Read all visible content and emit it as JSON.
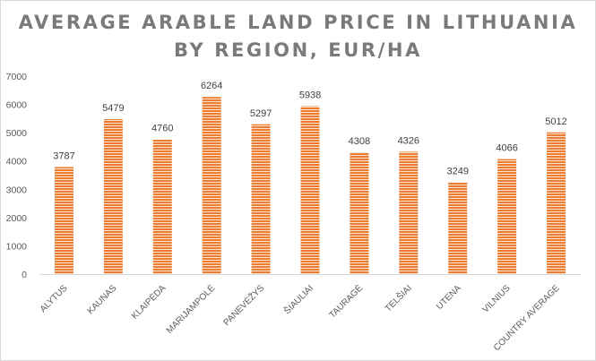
{
  "chart_data": {
    "type": "bar",
    "title_line1": "AVERAGE ARABLE LAND PRICE IN LITHUANIA",
    "title_line2": "BY REGION, EUR/HA",
    "categories": [
      "ALYTUS",
      "KAUNAS",
      "KLAIPĖDA",
      "MARIJAMPOLĖ",
      "PANEVĖŽYS",
      "ŠIAULIAI",
      "TAURAGĖ",
      "TELŠIAI",
      "UTENA",
      "VILNIUS",
      "COUNTRY AVERAGE"
    ],
    "values": [
      3787,
      5479,
      4760,
      6264,
      5297,
      5938,
      4308,
      4326,
      3249,
      4066,
      5012
    ],
    "y_ticks": [
      "0",
      "1000",
      "2000",
      "3000",
      "4000",
      "5000",
      "6000",
      "7000"
    ],
    "ylim": [
      0,
      7000
    ],
    "grid": false,
    "legend": "none",
    "bar_color": "#ed7d31",
    "bar_stripe_color": "#fbe3d1"
  }
}
